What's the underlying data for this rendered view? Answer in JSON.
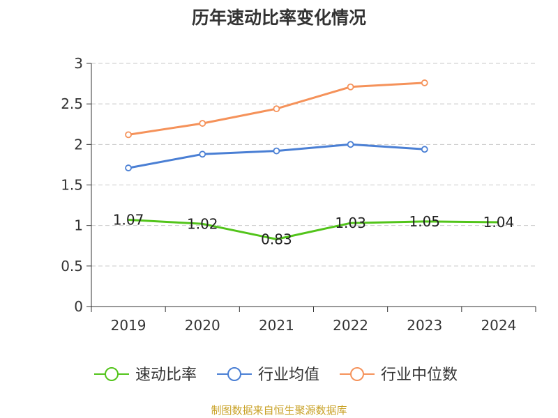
{
  "chart_data": {
    "type": "line",
    "title": "历年速动比率变化情况",
    "xlabel": "",
    "ylabel": "",
    "categories": [
      "2019",
      "2020",
      "2021",
      "2022",
      "2023",
      "2024"
    ],
    "ylim": [
      0,
      3
    ],
    "yticks": [
      "0",
      "0.5",
      "1",
      "1.5",
      "2",
      "2.5",
      "3"
    ],
    "grid": true,
    "legend_position": "bottom",
    "series": [
      {
        "name": "速动比率",
        "color": "#52c41a",
        "values": [
          1.07,
          1.02,
          0.83,
          1.03,
          1.05,
          1.04
        ],
        "labels": [
          "1.07",
          "1.02",
          "0.83",
          "1.03",
          "1.05",
          "1.04"
        ],
        "markers": false
      },
      {
        "name": "行业均值",
        "color": "#4a7fd4",
        "values": [
          1.71,
          1.88,
          1.92,
          2.0,
          1.94,
          null
        ],
        "markers": true
      },
      {
        "name": "行业中位数",
        "color": "#f5925a",
        "values": [
          2.12,
          2.26,
          2.44,
          2.71,
          2.76,
          null
        ],
        "markers": true
      }
    ]
  },
  "source_text": "制图数据来自恒生聚源数据库"
}
